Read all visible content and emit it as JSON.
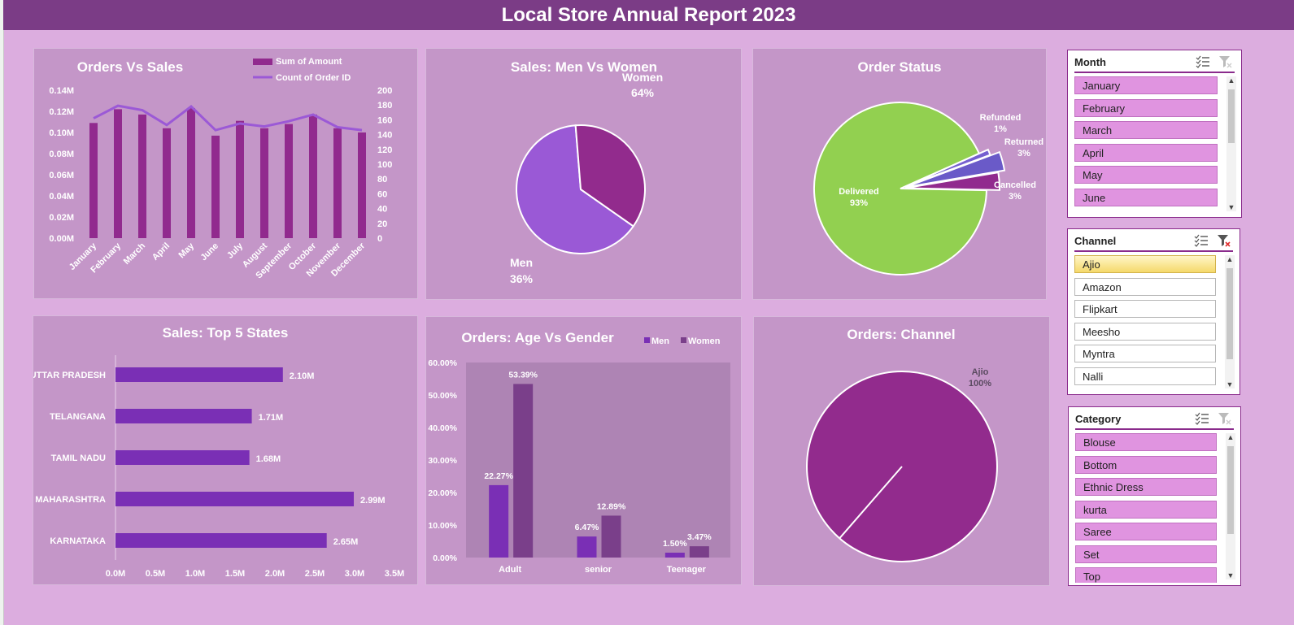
{
  "report_title": "Local Store Annual Report 2023",
  "colors": {
    "background": "#dcaddf",
    "title_bar": "#7b3c86",
    "panel": "#c496c8",
    "bar_purple": "#912a8e",
    "line_purple": "#9b59d6",
    "women_slice": "#9a59d6",
    "men_slice": "#922b8d",
    "delivered": "#92d050",
    "state_bars": "#7a2fb5",
    "men_bar": "#7a2fb5",
    "women_bar": "#7a3f8a",
    "channel_slice": "#922b8d"
  },
  "orders_vs_sales": {
    "title": "Orders Vs Sales",
    "legend": {
      "amount": "Sum of Amount",
      "count": "Count of Order ID"
    },
    "left_ticks": [
      "0.14M",
      "0.12M",
      "0.10M",
      "0.08M",
      "0.06M",
      "0.04M",
      "0.02M",
      "0.00M"
    ],
    "right_ticks": [
      "200",
      "180",
      "160",
      "140",
      "120",
      "100",
      "80",
      "60",
      "40",
      "20",
      "0"
    ],
    "months": [
      "January",
      "February",
      "March",
      "April",
      "May",
      "June",
      "July",
      "August",
      "September",
      "October",
      "November",
      "December"
    ]
  },
  "men_vs_women": {
    "title": "Sales: Men Vs Women",
    "women_label": "Women",
    "women_pct": "64%",
    "men_label": "Men",
    "men_pct": "36%"
  },
  "order_status": {
    "title": "Order Status",
    "delivered_label": "Delivered",
    "delivered_pct": "93%",
    "refunded_label": "Refunded",
    "refunded_pct": "1%",
    "returned_label": "Returned",
    "returned_pct": "3%",
    "cancelled_label": "Cancelled",
    "cancelled_pct": "3%"
  },
  "top_states": {
    "title": "Sales: Top 5 States",
    "x_ticks": [
      "0.0M",
      "0.5M",
      "1.0M",
      "1.5M",
      "2.0M",
      "2.5M",
      "3.0M",
      "3.5M"
    ]
  },
  "age_gender": {
    "title": "Orders: Age Vs Gender",
    "legend_men": "Men",
    "legend_women": "Women",
    "y_ticks": [
      "60.00%",
      "50.00%",
      "40.00%",
      "30.00%",
      "20.00%",
      "10.00%",
      "0.00%"
    ]
  },
  "orders_channel": {
    "title": "Orders: Channel",
    "label": "Ajio",
    "pct": "100%"
  },
  "slicers": {
    "month": {
      "title": "Month",
      "items": [
        "January",
        "February",
        "March",
        "April",
        "May",
        "June"
      ]
    },
    "channel": {
      "title": "Channel",
      "items": [
        "Ajio",
        "Amazon",
        "Flipkart",
        "Meesho",
        "Myntra",
        "Nalli"
      ]
    },
    "category": {
      "title": "Category",
      "items": [
        "Blouse",
        "Bottom",
        "Ethnic Dress",
        "kurta",
        "Saree",
        "Set",
        "Top"
      ]
    }
  },
  "chart_data": [
    {
      "type": "bar",
      "title": "Orders Vs Sales",
      "categories": [
        "January",
        "February",
        "March",
        "April",
        "May",
        "June",
        "July",
        "August",
        "September",
        "October",
        "November",
        "December"
      ],
      "series": [
        {
          "name": "Sum of Amount",
          "axis": "left",
          "values": [
            0.109,
            0.122,
            0.117,
            0.104,
            0.123,
            0.097,
            0.111,
            0.104,
            0.108,
            0.117,
            0.104,
            0.1
          ]
        },
        {
          "name": "Count of Order ID",
          "axis": "right",
          "type": "line",
          "values": [
            162,
            179,
            173,
            153,
            178,
            146,
            155,
            151,
            158,
            167,
            150,
            146
          ]
        }
      ],
      "ylim_left": [
        0,
        0.14
      ],
      "ylim_right": [
        0,
        200
      ],
      "legend": "top-right"
    },
    {
      "type": "pie",
      "title": "Sales: Men Vs Women",
      "categories": [
        "Women",
        "Men"
      ],
      "values": [
        64,
        36
      ]
    },
    {
      "type": "pie",
      "title": "Order Status",
      "categories": [
        "Delivered",
        "Refunded",
        "Returned",
        "Cancelled"
      ],
      "values": [
        93,
        1,
        3,
        3
      ]
    },
    {
      "type": "bar",
      "orientation": "horizontal",
      "title": "Sales: Top 5 States",
      "categories": [
        "UTTAR PRADESH",
        "TELANGANA",
        "TAMIL NADU",
        "MAHARASHTRA",
        "KARNATAKA"
      ],
      "values": [
        2.1,
        1.71,
        1.68,
        2.99,
        2.65
      ],
      "labels": [
        "2.10M",
        "1.71M",
        "1.68M",
        "2.99M",
        "2.65M"
      ],
      "xlim": [
        0,
        3.5
      ]
    },
    {
      "type": "bar",
      "title": "Orders: Age Vs Gender",
      "categories": [
        "Adult",
        "senior",
        "Teenager"
      ],
      "series": [
        {
          "name": "Men",
          "values": [
            22.27,
            6.47,
            1.5
          ],
          "labels": [
            "22.27%",
            "6.47%",
            "1.50%"
          ]
        },
        {
          "name": "Women",
          "values": [
            53.39,
            12.89,
            3.47
          ],
          "labels": [
            "53.39%",
            "12.89%",
            "3.47%"
          ]
        }
      ],
      "ylim": [
        0,
        60
      ],
      "legend": "top-right"
    },
    {
      "type": "pie",
      "title": "Orders: Channel",
      "categories": [
        "Ajio"
      ],
      "values": [
        100
      ]
    }
  ]
}
